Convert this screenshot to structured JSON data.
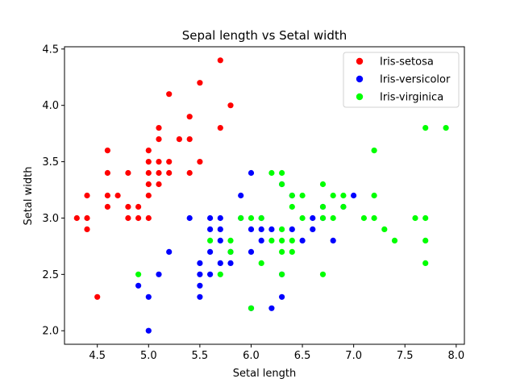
{
  "chart_data": {
    "type": "scatter",
    "title": "Sepal length vs Setal width",
    "xlabel": "Setal length",
    "ylabel": "Setal width",
    "xlim": [
      4.18,
      8.08
    ],
    "ylim": [
      1.88,
      4.52
    ],
    "xticks": [
      4.5,
      5.0,
      5.5,
      6.0,
      6.5,
      7.0,
      7.5,
      8.0
    ],
    "xtick_labels": [
      "4.5",
      "5.0",
      "5.5",
      "6.0",
      "6.5",
      "7.0",
      "7.5",
      "8.0"
    ],
    "yticks": [
      2.0,
      2.5,
      3.0,
      3.5,
      4.0,
      4.5
    ],
    "ytick_labels": [
      "2.0",
      "2.5",
      "3.0",
      "3.5",
      "4.0",
      "4.5"
    ],
    "grid": false,
    "legend_position": "top-right",
    "series": [
      {
        "name": "Iris-setosa",
        "color": "#ff0000",
        "points": [
          [
            4.3,
            3.0
          ],
          [
            4.4,
            2.9
          ],
          [
            4.4,
            3.0
          ],
          [
            4.4,
            3.2
          ],
          [
            4.5,
            2.3
          ],
          [
            4.6,
            3.1
          ],
          [
            4.6,
            3.2
          ],
          [
            4.6,
            3.4
          ],
          [
            4.6,
            3.6
          ],
          [
            4.7,
            3.2
          ],
          [
            4.8,
            3.0
          ],
          [
            4.8,
            3.1
          ],
          [
            4.8,
            3.4
          ],
          [
            4.9,
            3.0
          ],
          [
            4.9,
            3.1
          ],
          [
            5.0,
            3.0
          ],
          [
            5.0,
            3.2
          ],
          [
            5.0,
            3.3
          ],
          [
            5.0,
            3.4
          ],
          [
            5.0,
            3.5
          ],
          [
            5.0,
            3.6
          ],
          [
            5.1,
            3.3
          ],
          [
            5.1,
            3.4
          ],
          [
            5.1,
            3.5
          ],
          [
            5.1,
            3.7
          ],
          [
            5.1,
            3.8
          ],
          [
            5.2,
            3.4
          ],
          [
            5.2,
            3.5
          ],
          [
            5.2,
            4.1
          ],
          [
            5.3,
            3.7
          ],
          [
            5.4,
            3.4
          ],
          [
            5.4,
            3.7
          ],
          [
            5.4,
            3.9
          ],
          [
            5.5,
            3.5
          ],
          [
            5.5,
            4.2
          ],
          [
            5.7,
            3.8
          ],
          [
            5.7,
            4.4
          ],
          [
            5.8,
            4.0
          ]
        ]
      },
      {
        "name": "Iris-versicolor",
        "color": "#0000ff",
        "points": [
          [
            4.9,
            2.4
          ],
          [
            5.0,
            2.0
          ],
          [
            5.0,
            2.3
          ],
          [
            5.1,
            2.5
          ],
          [
            5.2,
            2.7
          ],
          [
            5.4,
            3.0
          ],
          [
            5.5,
            2.3
          ],
          [
            5.5,
            2.4
          ],
          [
            5.5,
            2.5
          ],
          [
            5.5,
            2.6
          ],
          [
            5.6,
            2.5
          ],
          [
            5.6,
            2.7
          ],
          [
            5.6,
            2.9
          ],
          [
            5.6,
            3.0
          ],
          [
            5.7,
            2.6
          ],
          [
            5.7,
            2.8
          ],
          [
            5.7,
            2.9
          ],
          [
            5.7,
            3.0
          ],
          [
            5.8,
            2.6
          ],
          [
            5.8,
            2.7
          ],
          [
            5.9,
            3.0
          ],
          [
            5.9,
            3.2
          ],
          [
            6.0,
            2.2
          ],
          [
            6.0,
            2.7
          ],
          [
            6.0,
            2.9
          ],
          [
            6.0,
            3.4
          ],
          [
            6.1,
            2.8
          ],
          [
            6.1,
            2.9
          ],
          [
            6.1,
            3.0
          ],
          [
            6.2,
            2.2
          ],
          [
            6.2,
            2.9
          ],
          [
            6.3,
            2.3
          ],
          [
            6.3,
            2.5
          ],
          [
            6.3,
            3.3
          ],
          [
            6.4,
            2.9
          ],
          [
            6.4,
            3.2
          ],
          [
            6.5,
            2.8
          ],
          [
            6.6,
            2.9
          ],
          [
            6.6,
            3.0
          ],
          [
            6.7,
            3.0
          ],
          [
            6.7,
            3.1
          ],
          [
            6.8,
            2.8
          ],
          [
            6.9,
            3.1
          ],
          [
            7.0,
            3.2
          ]
        ]
      },
      {
        "name": "Iris-virginica",
        "color": "#00ff00",
        "points": [
          [
            4.9,
            2.5
          ],
          [
            5.6,
            2.8
          ],
          [
            5.7,
            2.5
          ],
          [
            5.8,
            2.7
          ],
          [
            5.8,
            2.8
          ],
          [
            5.9,
            3.0
          ],
          [
            6.0,
            2.2
          ],
          [
            6.0,
            3.0
          ],
          [
            6.1,
            2.6
          ],
          [
            6.1,
            3.0
          ],
          [
            6.2,
            2.8
          ],
          [
            6.2,
            3.4
          ],
          [
            6.3,
            2.5
          ],
          [
            6.3,
            2.7
          ],
          [
            6.3,
            2.8
          ],
          [
            6.3,
            2.9
          ],
          [
            6.3,
            3.3
          ],
          [
            6.3,
            3.4
          ],
          [
            6.4,
            2.7
          ],
          [
            6.4,
            2.8
          ],
          [
            6.4,
            3.1
          ],
          [
            6.4,
            3.2
          ],
          [
            6.5,
            3.0
          ],
          [
            6.5,
            3.2
          ],
          [
            6.7,
            2.5
          ],
          [
            6.7,
            3.0
          ],
          [
            6.7,
            3.1
          ],
          [
            6.7,
            3.3
          ],
          [
            6.8,
            3.0
          ],
          [
            6.8,
            3.2
          ],
          [
            6.9,
            3.1
          ],
          [
            6.9,
            3.2
          ],
          [
            7.1,
            3.0
          ],
          [
            7.2,
            3.0
          ],
          [
            7.2,
            3.2
          ],
          [
            7.2,
            3.6
          ],
          [
            7.3,
            2.9
          ],
          [
            7.4,
            2.8
          ],
          [
            7.6,
            3.0
          ],
          [
            7.7,
            2.6
          ],
          [
            7.7,
            2.8
          ],
          [
            7.7,
            3.0
          ],
          [
            7.7,
            3.8
          ],
          [
            7.9,
            3.8
          ]
        ]
      }
    ]
  }
}
